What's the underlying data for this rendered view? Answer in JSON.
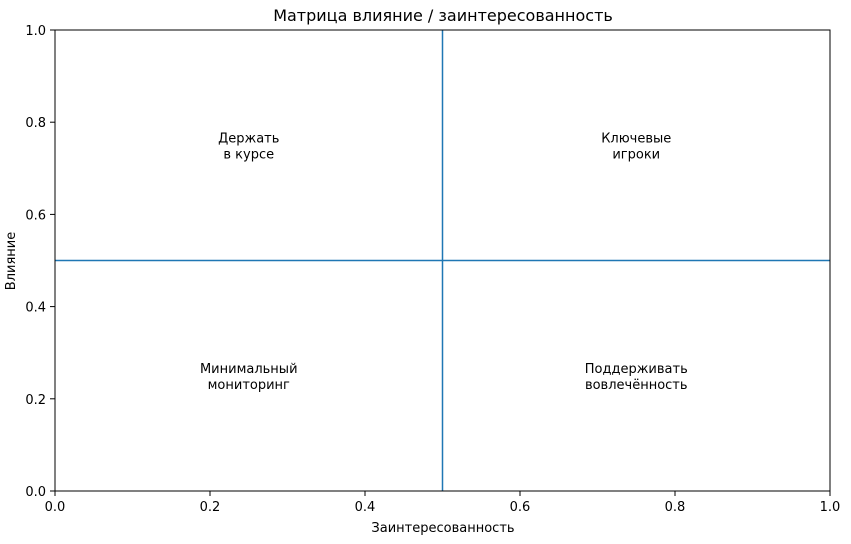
{
  "chart_data": {
    "type": "scatter",
    "title": "Матрица влияние / заинтересованность",
    "xlabel": "Заинтересованность",
    "ylabel": "Влияние",
    "xlim": [
      0.0,
      1.0
    ],
    "ylim": [
      0.0,
      1.0
    ],
    "x_ticks": [
      0.0,
      0.2,
      0.4,
      0.6,
      0.8,
      1.0
    ],
    "y_ticks": [
      0.0,
      0.2,
      0.4,
      0.6,
      0.8,
      1.0
    ],
    "x_tick_labels": [
      "0.0",
      "0.2",
      "0.4",
      "0.6",
      "0.8",
      "1.0"
    ],
    "y_tick_labels": [
      "0.0",
      "0.2",
      "0.4",
      "0.6",
      "0.8",
      "1.0"
    ],
    "grid": false,
    "divider_lines": [
      {
        "orientation": "vertical",
        "x": 0.5
      },
      {
        "orientation": "horizontal",
        "y": 0.5
      }
    ],
    "line_color": "#1f77b4",
    "annotations": [
      {
        "x": 0.25,
        "y": 0.75,
        "lines": [
          "Держать",
          "в курсе"
        ]
      },
      {
        "x": 0.75,
        "y": 0.75,
        "lines": [
          "Ключевые",
          "игроки"
        ]
      },
      {
        "x": 0.25,
        "y": 0.25,
        "lines": [
          "Минимальный",
          "мониторинг"
        ]
      },
      {
        "x": 0.75,
        "y": 0.25,
        "lines": [
          "Поддерживать",
          "вовлечённость"
        ]
      }
    ]
  }
}
